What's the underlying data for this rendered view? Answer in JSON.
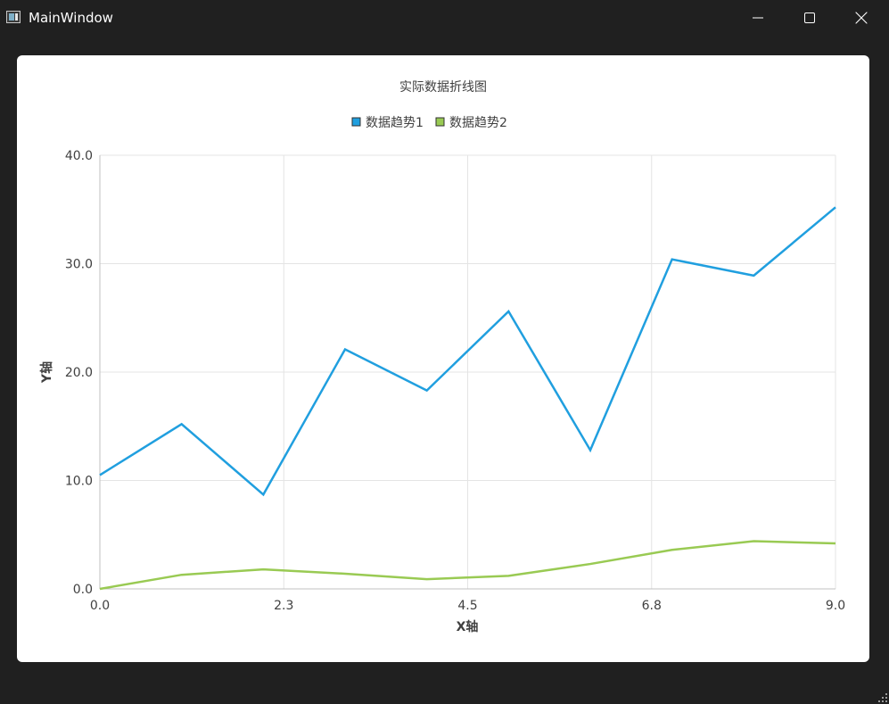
{
  "window": {
    "title": "MainWindow",
    "icon": "app-window-icon",
    "controls": [
      "minimize-icon",
      "maximize-icon",
      "close-icon"
    ]
  },
  "chart_data": {
    "type": "line",
    "title": "实际数据折线图",
    "xlabel": "X轴",
    "ylabel": "Y轴",
    "xlim": [
      0,
      9
    ],
    "ylim": [
      0,
      40
    ],
    "x_ticks": [
      "0.0",
      "2.3",
      "4.5",
      "6.8",
      "9.0"
    ],
    "y_ticks": [
      "0.0",
      "10.0",
      "20.0",
      "30.0",
      "40.0"
    ],
    "grid": true,
    "legend": "top",
    "x": [
      0,
      1,
      2,
      3,
      4,
      5,
      6,
      7,
      8,
      9
    ],
    "series": [
      {
        "name": "数据趋势1",
        "color": "#209fdf",
        "values": [
          10.5,
          15.2,
          8.7,
          22.1,
          18.3,
          25.6,
          12.8,
          30.4,
          28.9,
          35.2
        ]
      },
      {
        "name": "数据趋势2",
        "color": "#99ca53",
        "values": [
          0.0,
          1.3,
          1.8,
          1.4,
          0.9,
          1.2,
          2.3,
          3.6,
          4.4,
          4.2
        ]
      }
    ]
  }
}
